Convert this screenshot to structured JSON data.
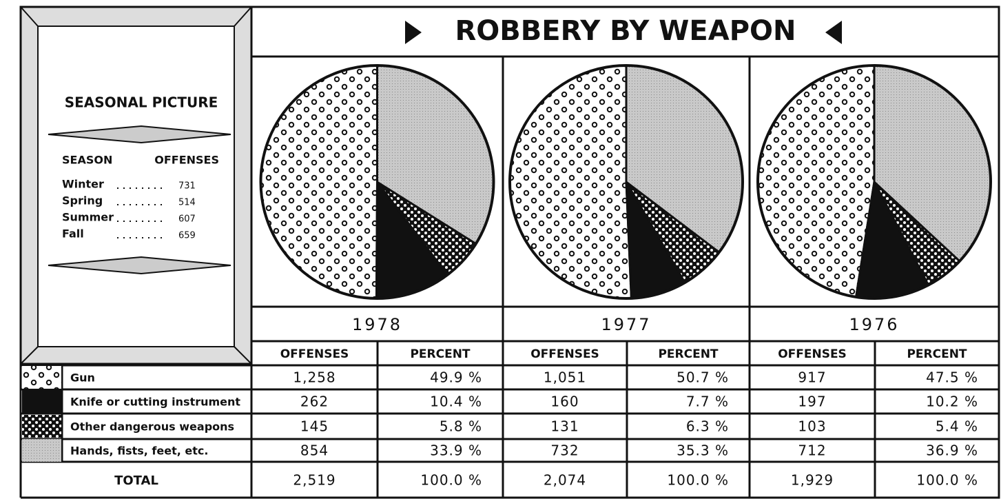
{
  "title": "ROBBERY BY WEAPON",
  "seasonal": {
    "title": "SEASONAL PICTURE",
    "headers": [
      "SEASON",
      "OFFENSES"
    ],
    "rows": [
      [
        "Winter",
        731
      ],
      [
        "Spring",
        514
      ],
      [
        "Summer",
        607
      ],
      [
        "Fall",
        659
      ]
    ]
  },
  "legend": [
    "Gun",
    "Knife or cutting instrument",
    "Other dangerous weapons",
    "Hands, fists, feet, etc."
  ],
  "column_headers": [
    "OFFENSES",
    "PERCENT"
  ],
  "total_label": "TOTAL",
  "chart_data": [
    {
      "type": "pie",
      "title": "1978",
      "values": [
        49.9,
        10.4,
        5.8,
        33.9
      ],
      "value_labels": [
        "49.9 %",
        "10.4 %",
        "5.8 %",
        "33.9 %"
      ],
      "offenses": [
        1258,
        262,
        145,
        854
      ],
      "offense_labels": [
        "1,258",
        "262",
        "145",
        "854"
      ],
      "total_offenses": 2519,
      "total_offenses_label": "2,519",
      "total_percent": 100.0,
      "total_percent_label": "100.0 %"
    },
    {
      "type": "pie",
      "title": "1977",
      "values": [
        50.7,
        7.7,
        6.3,
        35.3
      ],
      "value_labels": [
        "50.7 %",
        "7.7 %",
        "6.3 %",
        "35.3 %"
      ],
      "offenses": [
        1051,
        160,
        131,
        732
      ],
      "offense_labels": [
        "1,051",
        "160",
        "131",
        "732"
      ],
      "total_offenses": 2074,
      "total_offenses_label": "2,074",
      "total_percent": 100.0,
      "total_percent_label": "100.0 %"
    },
    {
      "type": "pie",
      "title": "1976",
      "values": [
        47.5,
        10.2,
        5.4,
        36.9
      ],
      "value_labels": [
        "47.5 %",
        "10.2 %",
        "5.4 %",
        "36.9 %"
      ],
      "offenses": [
        917,
        197,
        103,
        712
      ],
      "offense_labels": [
        "917",
        "197",
        "103",
        "712"
      ],
      "total_offenses": 1929,
      "total_offenses_label": "1,929",
      "total_percent": 100.0,
      "total_percent_label": "100.0 %"
    }
  ]
}
